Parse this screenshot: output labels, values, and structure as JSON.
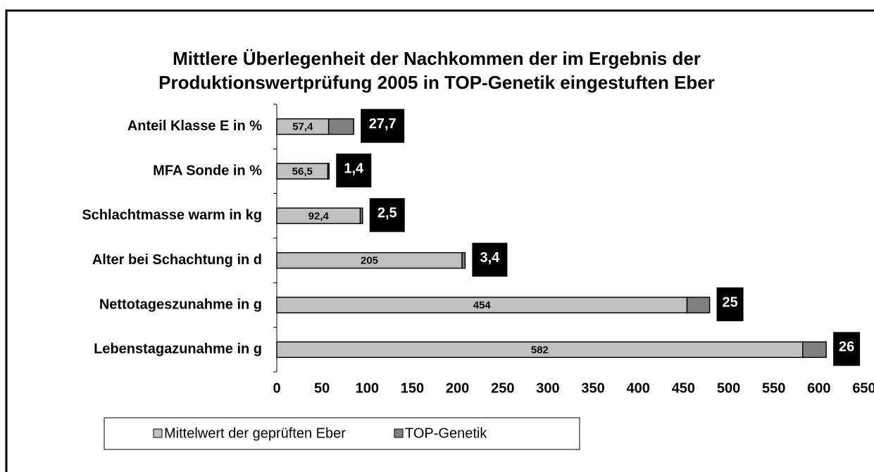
{
  "chart_data": {
    "type": "bar",
    "orientation": "horizontal",
    "stacked": true,
    "title": [
      "Mittlere  Überlegenheit der Nachkommen der im Ergebnis der",
      "Produktionswertprüfung 2005 in TOP-Genetik eingestuften Eber"
    ],
    "categories": [
      "Anteil Klasse E in %",
      "MFA Sonde in %",
      "Schlachtmasse warm in kg",
      "Alter bei Schachtung in d",
      "Nettotageszunahme in g",
      "Lebenstagazunahme in g"
    ],
    "series": [
      {
        "name": "Mittelwert der geprüften Eber",
        "color": "#c0c0c0",
        "values": [
          57.4,
          56.5,
          92.4,
          205,
          454,
          582
        ],
        "value_labels": [
          "57,4",
          "56,5",
          "92,4",
          "205",
          "454",
          "582"
        ]
      },
      {
        "name": "TOP-Genetik",
        "color": "#808080",
        "values": [
          27.7,
          1.4,
          2.5,
          3.4,
          25,
          26
        ],
        "value_labels": [
          "27,7",
          "1,4",
          "2,5",
          "3,4",
          "25",
          "26"
        ]
      }
    ],
    "xlim": [
      0,
      650
    ],
    "xticks": [
      0,
      50,
      100,
      150,
      200,
      250,
      300,
      350,
      400,
      450,
      500,
      550,
      600,
      650
    ],
    "legend": "bottom"
  }
}
